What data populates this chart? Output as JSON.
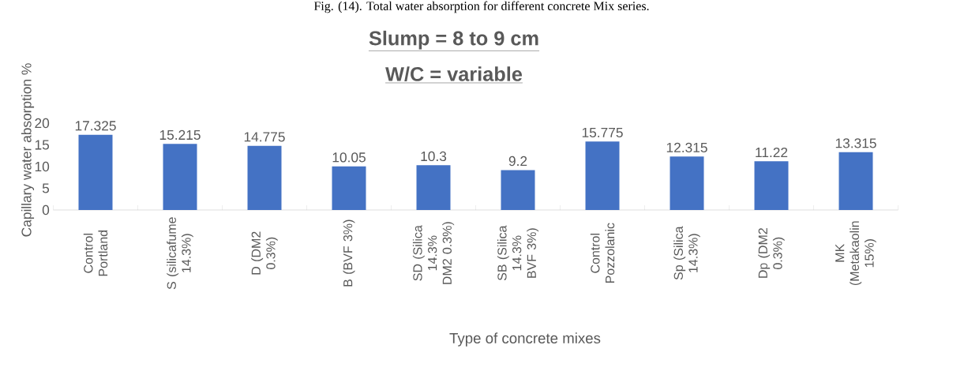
{
  "chart_data": {
    "type": "bar",
    "title": "Slump = 8 to 9 cm",
    "subtitle": "W/C = variable",
    "xlabel": "Type of concrete mixes",
    "ylabel": "Capillary water absorption %",
    "annotations": [
      "Fig. (14). Total water absorption for different concrete Mix series."
    ],
    "categories": [
      "Control Portland",
      "S (silicafume 14.3%)",
      "D (DM2 0.3%)",
      "B (BVF 3%)",
      "SD (Silica 14.3% DM2 0.3%)",
      "SB (Silica 14.3% BVF 3%)",
      "Control Pozzolanic",
      "Sp (Silica 14.3%)",
      "Dp (DM2 0.3%)",
      "MK (Metakaolin 15%)"
    ],
    "values": [
      17.325,
      15.215,
      14.775,
      10.05,
      10.3,
      9.2,
      15.775,
      12.315,
      11.22,
      13.315
    ],
    "color": "#4472c4",
    "ylim": [
      0,
      20
    ],
    "yticks": [
      0,
      5,
      10,
      15,
      20
    ],
    "data_labels": true
  }
}
